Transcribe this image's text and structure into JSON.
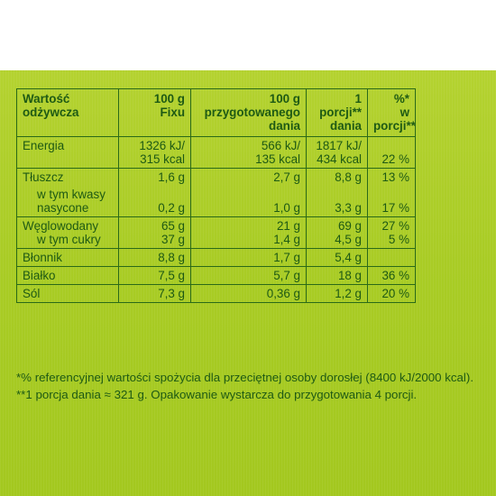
{
  "header": {
    "nutrient": "Wartość\nodżywcza",
    "per100_fix": "100 g\nFixu",
    "per100_prepared": "100 g\nprzygotowanego\ndania",
    "per_portion": "1\nporcji**\ndania",
    "percent_ri": "%*\nw\nporcji**"
  },
  "rows": [
    {
      "name": "Energia",
      "fix": "1326 kJ/\n315 kcal",
      "prepared": "566 kJ/\n135 kcal",
      "portion": "1817 kJ/\n434 kcal",
      "ri": "22 %"
    },
    {
      "name": "Tłuszcz",
      "fix": "1,6 g",
      "prepared": "2,7 g",
      "portion": "8,8 g",
      "ri": "13 %",
      "sub_name": "w tym kwasy\nnasycone",
      "sub_fix": "0,2 g",
      "sub_prepared": "1,0 g",
      "sub_portion": "3,3 g",
      "sub_ri": "17 %"
    },
    {
      "name": "Węglowodany",
      "fix": "65 g",
      "prepared": "21 g",
      "portion": "69 g",
      "ri": "27 %",
      "sub_name": "w tym cukry",
      "sub_fix": "37 g",
      "sub_prepared": "1,4 g",
      "sub_portion": "4,5 g",
      "sub_ri": "5 %"
    },
    {
      "name": "Błonnik",
      "fix": "8,8 g",
      "prepared": "1,7 g",
      "portion": "5,4 g",
      "ri": ""
    },
    {
      "name": "Białko",
      "fix": "7,5 g",
      "prepared": "5,7 g",
      "portion": "18 g",
      "ri": "36 %"
    },
    {
      "name": "Sól",
      "fix": "7,3 g",
      "prepared": "0,36 g",
      "portion": "1,2 g",
      "ri": "20 %"
    }
  ],
  "footnotes": {
    "ri_note": "*% referencyjnej wartości spożycia dla przeciętnej osoby dorosłej (8400 kJ/2000 kcal).",
    "portion_note": "**1 porcja dania ≈ 321 g. Opakowanie wystarcza do przygotowania 4 porcji."
  },
  "colors": {
    "background_top": "#b4d230",
    "background_bottom": "#a3c81f",
    "text": "#1e5a14",
    "border": "#2a6a18"
  }
}
